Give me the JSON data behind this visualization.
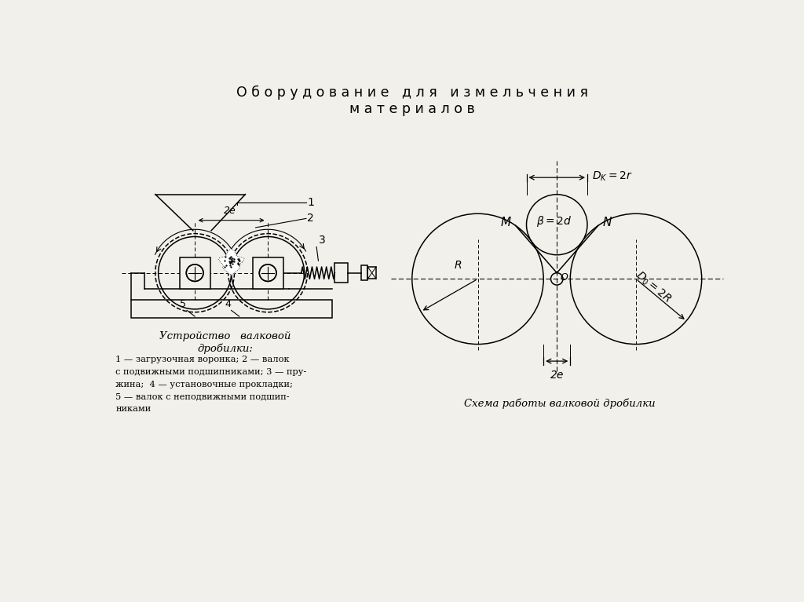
{
  "title_line1": "О б о р у д о в а н и е   д л я   и з м е л ь ч е н и я",
  "title_line2": "м а т е р и а л о в",
  "bg_color": "#f2f0eb",
  "left_caption1": "Устройство   валковой",
  "left_caption2": "дробилки:",
  "left_legend_1": "1 — загрузочная воронка; 2 — валок",
  "left_legend_2": "с подвижными подшипниками; 3 — пру-",
  "left_legend_3": "жина;  4 — установочные прокладки;",
  "left_legend_4": "5 — валок с неподвижными подшип-",
  "left_legend_5": "никами",
  "right_caption": "Схема работы валковой дробилки"
}
